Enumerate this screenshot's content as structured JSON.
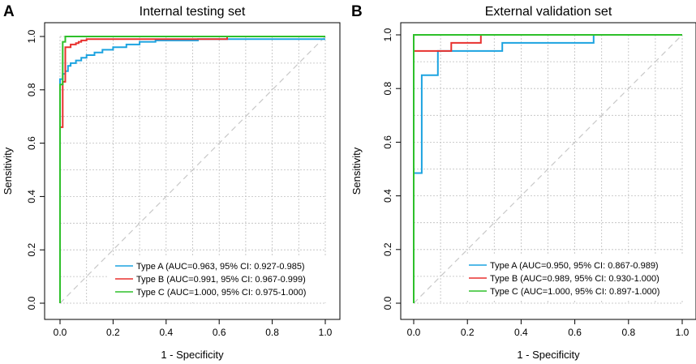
{
  "colors": {
    "type_a": "#1ca3e0",
    "type_b": "#e8312e",
    "type_c": "#2ec02a",
    "grid": "#bdbdbd",
    "diagonal": "#c8c8c8"
  },
  "chart_data": [
    {
      "type": "line",
      "panel_label": "A",
      "title": "Internal testing set",
      "xlabel": "1 - Specificity",
      "ylabel": "Sensitivity",
      "xlim": [
        0,
        1
      ],
      "ylim": [
        0,
        1
      ],
      "xticks": [
        "0.0",
        "0.2",
        "0.4",
        "0.6",
        "0.8",
        "1.0"
      ],
      "yticks": [
        "0.0",
        "0.2",
        "0.4",
        "0.6",
        "0.8",
        "1.0"
      ],
      "grid": true,
      "legend_position": "bottom-right",
      "series": [
        {
          "name": "Type A",
          "legend": "Type A (AUC=0.963, 95% CI: 0.927-0.985)",
          "color_key": "type_a",
          "x": [
            0,
            0,
            0.01,
            0.01,
            0.02,
            0.02,
            0.03,
            0.03,
            0.04,
            0.04,
            0.06,
            0.06,
            0.08,
            0.08,
            0.1,
            0.1,
            0.13,
            0.13,
            0.16,
            0.16,
            0.2,
            0.2,
            0.25,
            0.25,
            0.3,
            0.3,
            0.36,
            0.36,
            0.52,
            0.52,
            1.0
          ],
          "y": [
            0,
            0.84,
            0.84,
            0.86,
            0.86,
            0.87,
            0.87,
            0.89,
            0.89,
            0.9,
            0.9,
            0.91,
            0.91,
            0.92,
            0.92,
            0.93,
            0.93,
            0.94,
            0.94,
            0.95,
            0.95,
            0.96,
            0.96,
            0.97,
            0.97,
            0.98,
            0.98,
            0.985,
            0.985,
            0.99,
            0.99
          ]
        },
        {
          "name": "Type B",
          "legend": "Type B (AUC=0.991, 95% CI: 0.967-0.999)",
          "color_key": "type_b",
          "x": [
            0,
            0,
            0.01,
            0.01,
            0.02,
            0.02,
            0.04,
            0.04,
            0.06,
            0.06,
            0.07,
            0.07,
            0.08,
            0.08,
            0.1,
            0.1,
            0.63,
            0.63,
            1.0
          ],
          "y": [
            0,
            0.66,
            0.66,
            0.83,
            0.83,
            0.96,
            0.96,
            0.97,
            0.97,
            0.975,
            0.975,
            0.98,
            0.98,
            0.985,
            0.985,
            0.99,
            0.99,
            1.0,
            1.0
          ]
        },
        {
          "name": "Type C",
          "legend": "Type C (AUC=1.000, 95% CI: 0.975-1.000)",
          "color_key": "type_c",
          "x": [
            0,
            0,
            0.01,
            0.01,
            0.02,
            0.02,
            1.0
          ],
          "y": [
            0,
            0.82,
            0.82,
            0.98,
            0.98,
            1.0,
            1.0
          ]
        }
      ]
    },
    {
      "type": "line",
      "panel_label": "B",
      "title": "External validation set",
      "xlabel": "1 - Specificity",
      "ylabel": "Sensitivity",
      "xlim": [
        0,
        1
      ],
      "ylim": [
        0,
        1
      ],
      "xticks": [
        "0.0",
        "0.2",
        "0.4",
        "0.6",
        "0.8",
        "1.0"
      ],
      "yticks": [
        "0.0",
        "0.2",
        "0.4",
        "0.6",
        "0.8",
        "1.0"
      ],
      "grid": true,
      "legend_position": "bottom-right",
      "series": [
        {
          "name": "Type A",
          "legend": "Type A (AUC=0.950, 95% CI: 0.867-0.989)",
          "color_key": "type_a",
          "x": [
            0,
            0,
            0.03,
            0.03,
            0.09,
            0.09,
            0.33,
            0.33,
            0.67,
            0.67,
            1.0
          ],
          "y": [
            0,
            0.485,
            0.485,
            0.85,
            0.85,
            0.94,
            0.94,
            0.97,
            0.97,
            1.0,
            1.0
          ]
        },
        {
          "name": "Type B",
          "legend": "Type B (AUC=0.989, 95% CI: 0.930-1.000)",
          "color_key": "type_b",
          "x": [
            0,
            0,
            0.14,
            0.14,
            0.25,
            0.25,
            1.0
          ],
          "y": [
            0,
            0.94,
            0.94,
            0.97,
            0.97,
            1.0,
            1.0
          ]
        },
        {
          "name": "Type C",
          "legend": "Type C (AUC=1.000, 95% CI: 0.897-1.000)",
          "color_key": "type_c",
          "x": [
            0,
            0,
            1.0
          ],
          "y": [
            0,
            1.0,
            1.0
          ]
        }
      ]
    }
  ]
}
